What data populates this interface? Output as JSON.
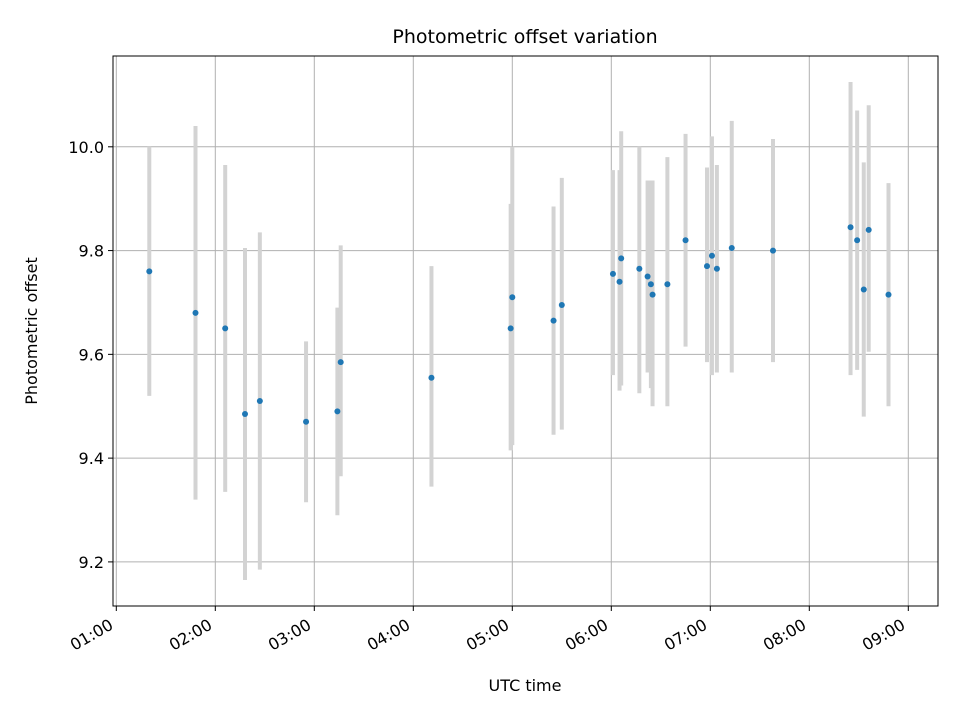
{
  "chart_data": {
    "type": "scatter",
    "title": "Photometric offset variation",
    "xlabel": "UTC time",
    "ylabel": "Photometric offset",
    "grid": true,
    "legend": "none",
    "xlim": [
      "00:58",
      "09:18"
    ],
    "ylim": [
      9.115,
      10.175
    ],
    "x_ticks": [
      "01:00",
      "02:00",
      "03:00",
      "04:00",
      "05:00",
      "06:00",
      "07:00",
      "08:00",
      "09:00"
    ],
    "y_ticks": [
      "9.2",
      "9.4",
      "9.6",
      "9.8",
      "10.0"
    ],
    "colors": {
      "point": "#1f77b4",
      "errorbar": "#d3d3d3",
      "grid": "#b0b0b0"
    },
    "points": [
      {
        "x": "01:20",
        "y": 9.76,
        "ylow": 9.52,
        "yhigh": 10.0
      },
      {
        "x": "01:48",
        "y": 9.68,
        "ylow": 9.32,
        "yhigh": 10.04
      },
      {
        "x": "02:06",
        "y": 9.65,
        "ylow": 9.335,
        "yhigh": 9.965
      },
      {
        "x": "02:18",
        "y": 9.485,
        "ylow": 9.165,
        "yhigh": 9.805
      },
      {
        "x": "02:27",
        "y": 9.51,
        "ylow": 9.185,
        "yhigh": 9.835
      },
      {
        "x": "02:55",
        "y": 9.47,
        "ylow": 9.315,
        "yhigh": 9.625
      },
      {
        "x": "03:14",
        "y": 9.49,
        "ylow": 9.29,
        "yhigh": 9.69
      },
      {
        "x": "03:16",
        "y": 9.585,
        "ylow": 9.365,
        "yhigh": 9.81
      },
      {
        "x": "04:11",
        "y": 9.555,
        "ylow": 9.345,
        "yhigh": 9.77
      },
      {
        "x": "04:59",
        "y": 9.65,
        "ylow": 9.415,
        "yhigh": 9.89
      },
      {
        "x": "05:00",
        "y": 9.71,
        "ylow": 9.425,
        "yhigh": 10.0
      },
      {
        "x": "05:25",
        "y": 9.665,
        "ylow": 9.445,
        "yhigh": 9.885
      },
      {
        "x": "05:30",
        "y": 9.695,
        "ylow": 9.455,
        "yhigh": 9.94
      },
      {
        "x": "06:01",
        "y": 9.755,
        "ylow": 9.56,
        "yhigh": 9.955
      },
      {
        "x": "06:05",
        "y": 9.74,
        "ylow": 9.53,
        "yhigh": 9.955
      },
      {
        "x": "06:06",
        "y": 9.785,
        "ylow": 9.54,
        "yhigh": 10.03
      },
      {
        "x": "06:17",
        "y": 9.765,
        "ylow": 9.525,
        "yhigh": 10.0
      },
      {
        "x": "06:22",
        "y": 9.75,
        "ylow": 9.565,
        "yhigh": 9.935
      },
      {
        "x": "06:24",
        "y": 9.735,
        "ylow": 9.535,
        "yhigh": 9.935
      },
      {
        "x": "06:25",
        "y": 9.715,
        "ylow": 9.5,
        "yhigh": 9.935
      },
      {
        "x": "06:34",
        "y": 9.735,
        "ylow": 9.5,
        "yhigh": 9.98
      },
      {
        "x": "06:45",
        "y": 9.82,
        "ylow": 9.615,
        "yhigh": 10.025
      },
      {
        "x": "06:58",
        "y": 9.77,
        "ylow": 9.585,
        "yhigh": 9.96
      },
      {
        "x": "07:01",
        "y": 9.79,
        "ylow": 9.56,
        "yhigh": 10.02
      },
      {
        "x": "07:04",
        "y": 9.765,
        "ylow": 9.565,
        "yhigh": 9.965
      },
      {
        "x": "07:13",
        "y": 9.805,
        "ylow": 9.565,
        "yhigh": 10.05
      },
      {
        "x": "07:38",
        "y": 9.8,
        "ylow": 9.585,
        "yhigh": 10.015
      },
      {
        "x": "08:25",
        "y": 9.845,
        "ylow": 9.56,
        "yhigh": 10.125
      },
      {
        "x": "08:29",
        "y": 9.82,
        "ylow": 9.57,
        "yhigh": 10.07
      },
      {
        "x": "08:33",
        "y": 9.725,
        "ylow": 9.48,
        "yhigh": 9.97
      },
      {
        "x": "08:36",
        "y": 9.84,
        "ylow": 9.605,
        "yhigh": 10.08
      },
      {
        "x": "08:48",
        "y": 9.715,
        "ylow": 9.5,
        "yhigh": 9.93
      }
    ]
  }
}
